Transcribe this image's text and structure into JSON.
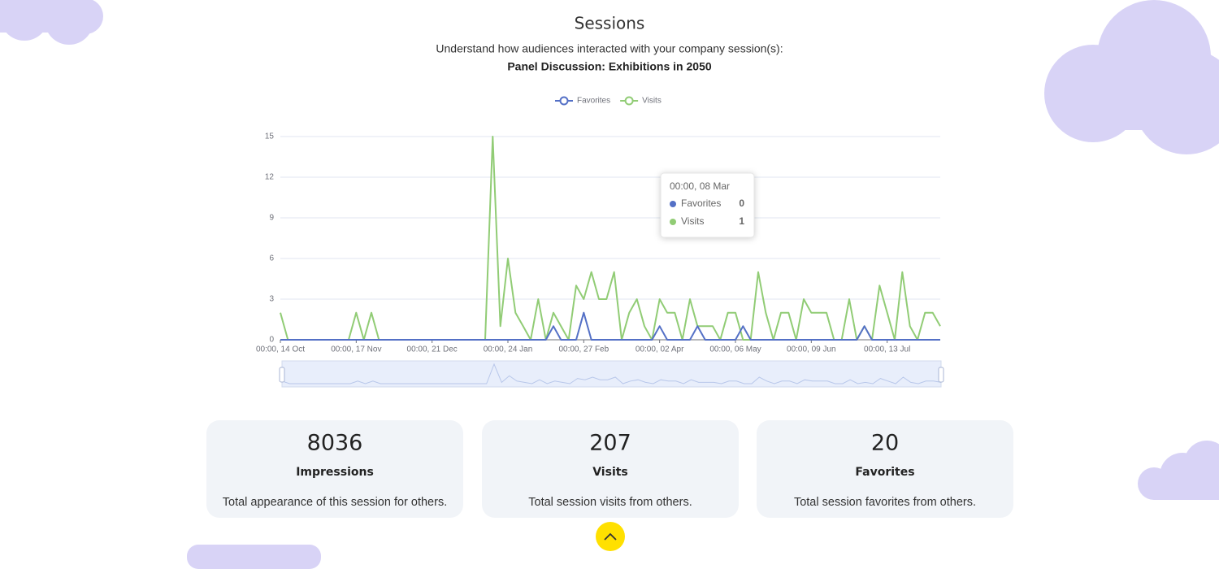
{
  "header": {
    "title": "Sessions",
    "subtitle": "Understand how audiences interacted with your company session(s):",
    "session_name": "Panel Discussion: Exhibitions in 2050"
  },
  "chart_data": {
    "type": "line",
    "categories": [
      "00:00, 14 Oct",
      null,
      null,
      null,
      null,
      null,
      null,
      null,
      null,
      null,
      "00:00, 17 Nov",
      null,
      null,
      null,
      null,
      null,
      null,
      null,
      null,
      null,
      "00:00, 21 Dec",
      null,
      null,
      null,
      null,
      null,
      null,
      null,
      null,
      null,
      "00:00, 24 Jan",
      null,
      null,
      null,
      null,
      null,
      null,
      null,
      null,
      null,
      "00:00, 27 Feb",
      null,
      null,
      null,
      null,
      null,
      null,
      null,
      null,
      null,
      "00:00, 02 Apr",
      null,
      null,
      null,
      null,
      null,
      null,
      null,
      null,
      null,
      "00:00, 06 May",
      null,
      null,
      null,
      null,
      null,
      null,
      null,
      null,
      null,
      "00:00, 09 Jun",
      null,
      null,
      null,
      null,
      null,
      null,
      null,
      null,
      null,
      "00:00, 13 Jul",
      null,
      null,
      null,
      null,
      null,
      null,
      null
    ],
    "series": [
      {
        "name": "Favorites",
        "color": "#5470c6",
        "values": [
          0,
          0,
          0,
          0,
          0,
          0,
          0,
          0,
          0,
          0,
          0,
          0,
          0,
          0,
          0,
          0,
          0,
          0,
          0,
          0,
          0,
          0,
          0,
          0,
          0,
          0,
          0,
          0,
          0,
          0,
          0,
          0,
          0,
          0,
          0,
          0,
          1,
          0,
          0,
          0,
          2,
          0,
          0,
          0,
          0,
          0,
          0,
          0,
          0,
          0,
          1,
          0,
          0,
          0,
          0,
          1,
          0,
          0,
          0,
          0,
          0,
          1,
          0,
          0,
          0,
          0,
          0,
          0,
          0,
          0,
          0,
          0,
          0,
          0,
          0,
          0,
          0,
          1,
          0,
          0,
          0,
          0,
          0,
          0,
          0,
          0,
          0,
          0
        ]
      },
      {
        "name": "Visits",
        "color": "#91cc75",
        "values": [
          2,
          0,
          0,
          0,
          0,
          0,
          0,
          0,
          0,
          0,
          2,
          0,
          2,
          0,
          0,
          0,
          0,
          0,
          0,
          0,
          0,
          0,
          0,
          0,
          0,
          0,
          0,
          0,
          15,
          1,
          6,
          2,
          1,
          0,
          3,
          0,
          2,
          1,
          0,
          4,
          3,
          5,
          3,
          3,
          5,
          0,
          2,
          3,
          1,
          0,
          3,
          2,
          2,
          0,
          3,
          1,
          1,
          1,
          0,
          2,
          2,
          0,
          0,
          5,
          2,
          0,
          2,
          2,
          0,
          3,
          2,
          2,
          2,
          0,
          0,
          3,
          0,
          1,
          0,
          4,
          2,
          0,
          5,
          1,
          0,
          2,
          2,
          1
        ]
      }
    ],
    "ylim": [
      0,
      15
    ],
    "yticks": [
      0,
      3,
      6,
      9,
      12,
      15
    ],
    "grid": true,
    "legend": "top",
    "tooltip": {
      "title": "00:00, 08 Mar",
      "rows": [
        {
          "name": "Favorites",
          "value": "0"
        },
        {
          "name": "Visits",
          "value": "1"
        }
      ]
    }
  },
  "stats": [
    {
      "value": "8036",
      "label": "Impressions",
      "description": "Total appearance of this session for others."
    },
    {
      "value": "207",
      "label": "Visits",
      "description": "Total session visits from others."
    },
    {
      "value": "20",
      "label": "Favorites",
      "description": "Total session favorites from others."
    }
  ]
}
